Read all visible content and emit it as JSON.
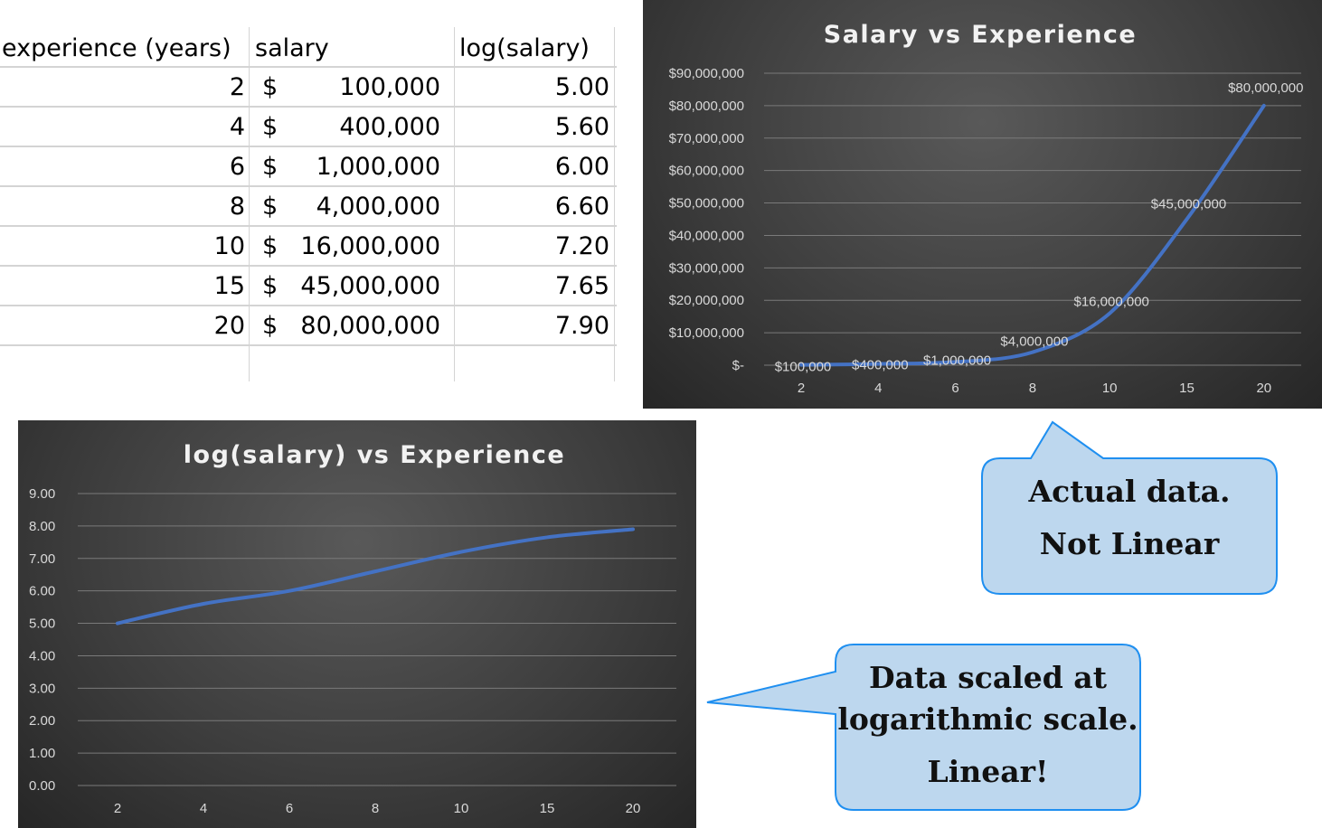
{
  "table": {
    "headers": [
      "experience (years)",
      "salary",
      "log(salary)"
    ],
    "currency_symbol": "$",
    "rows": [
      {
        "experience": "2",
        "salary": "100,000",
        "log_salary": "5.00"
      },
      {
        "experience": "4",
        "salary": "400,000",
        "log_salary": "5.60"
      },
      {
        "experience": "6",
        "salary": "1,000,000",
        "log_salary": "6.00"
      },
      {
        "experience": "8",
        "salary": "4,000,000",
        "log_salary": "6.60"
      },
      {
        "experience": "10",
        "salary": "16,000,000",
        "log_salary": "7.20"
      },
      {
        "experience": "15",
        "salary": "45,000,000",
        "log_salary": "7.65"
      },
      {
        "experience": "20",
        "salary": "80,000,000",
        "log_salary": "7.90"
      }
    ]
  },
  "callouts": {
    "actual": [
      "Actual  data.",
      "Not Linear"
    ],
    "log": [
      "Data scaled at",
      "logarithmic scale.",
      "Linear!"
    ],
    "fill_color": "#bdd7ee",
    "border_color": "#1f8ff0"
  },
  "chart_data": [
    {
      "type": "line",
      "title": "Salary vs Experience",
      "categories": [
        "2",
        "4",
        "6",
        "8",
        "10",
        "15",
        "20"
      ],
      "values": [
        100000,
        400000,
        1000000,
        4000000,
        16000000,
        45000000,
        80000000
      ],
      "data_labels": [
        "$100,000",
        "$400,000",
        "$1,000,000",
        "$4,000,000",
        "$16,000,000",
        "$45,000,000",
        "$80,000,000"
      ],
      "ylim": [
        0,
        90000000
      ],
      "yticks": [
        0,
        10000000,
        20000000,
        30000000,
        40000000,
        50000000,
        60000000,
        70000000,
        80000000,
        90000000
      ],
      "ytick_labels": [
        "$-",
        "$10,000,000",
        "$20,000,000",
        "$30,000,000",
        "$40,000,000",
        "$50,000,000",
        "$60,000,000",
        "$70,000,000",
        "$80,000,000",
        "$90,000,000"
      ],
      "grid": true,
      "line_color": "#4472c4"
    },
    {
      "type": "line",
      "title": "log(salary) vs Experience",
      "categories": [
        "2",
        "4",
        "6",
        "8",
        "10",
        "15",
        "20"
      ],
      "values": [
        5.0,
        5.6,
        6.0,
        6.6,
        7.2,
        7.65,
        7.9
      ],
      "ylim": [
        0,
        9
      ],
      "yticks": [
        0,
        1,
        2,
        3,
        4,
        5,
        6,
        7,
        8,
        9
      ],
      "ytick_labels": [
        "0.00",
        "1.00",
        "2.00",
        "3.00",
        "4.00",
        "5.00",
        "6.00",
        "7.00",
        "8.00",
        "9.00"
      ],
      "grid": true,
      "line_color": "#4472c4"
    }
  ]
}
